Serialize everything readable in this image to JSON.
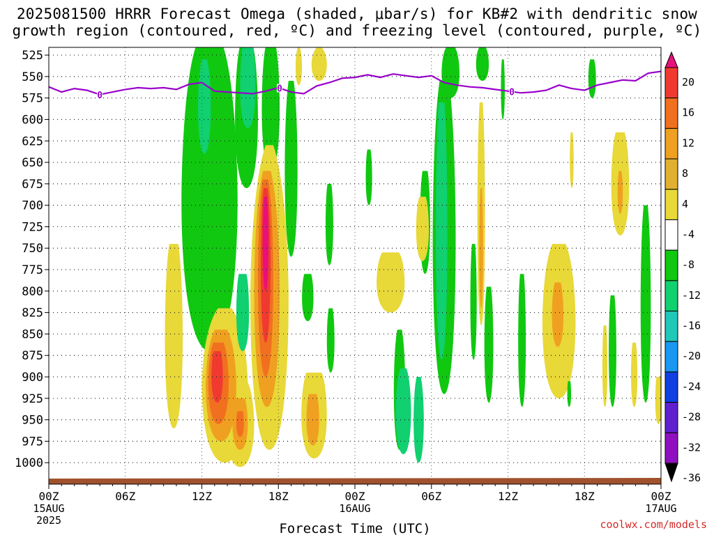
{
  "header": {
    "title_line1": "2025081500 HRRR Forecast Omega (shaded, μbar/s) for KB#2 with dendritic snow",
    "title_line2": "growth region (contoured, red, ºC) and freezing level (contoured, purple, ºC)"
  },
  "footer": {
    "credit": "coolwx.com/models"
  },
  "chart_data": {
    "type": "heatmap",
    "title": "2025081500 HRRR Forecast Omega (shaded, μbar/s) for KB#2 with dendritic snow growth region (contoured, red, ºC) and freezing level (contoured, purple, ºC)",
    "xlabel": "Forecast Time (UTC)",
    "ylabel": "",
    "x_hours_range": [
      0,
      48
    ],
    "x_ticks": [
      {
        "hour": 0,
        "label": "00Z",
        "sub1": "15AUG",
        "sub2": "2025"
      },
      {
        "hour": 6,
        "label": "06Z"
      },
      {
        "hour": 12,
        "label": "12Z"
      },
      {
        "hour": 18,
        "label": "18Z"
      },
      {
        "hour": 24,
        "label": "00Z",
        "sub1": "16AUG"
      },
      {
        "hour": 30,
        "label": "06Z"
      },
      {
        "hour": 36,
        "label": "12Z"
      },
      {
        "hour": 42,
        "label": "18Z"
      },
      {
        "hour": 48,
        "label": "00Z",
        "sub1": "17AUG"
      }
    ],
    "y_levels_hpa": [
      525,
      550,
      575,
      600,
      625,
      650,
      675,
      700,
      725,
      750,
      775,
      800,
      825,
      850,
      875,
      900,
      925,
      950,
      975,
      1000
    ],
    "y_axis_top": 516,
    "y_axis_bottom": 1025,
    "colorbar": {
      "labels": [
        "20",
        "16",
        "12",
        "8",
        "4",
        "-4",
        "-8",
        "-12",
        "-16",
        "-20",
        "-24",
        "-28",
        "-32",
        "-36"
      ],
      "colors": [
        "#e8107a",
        "#f03a30",
        "#f07020",
        "#f0a020",
        "#e0b030",
        "#e8d838",
        "#ffffff",
        "#10c810",
        "#10d070",
        "#20c8b8",
        "#1898f0",
        "#1040e0",
        "#6020d0",
        "#9010c0",
        "#a8a8a8"
      ]
    },
    "freezing_level": {
      "label": "0",
      "color": "#9900cc",
      "points": [
        [
          0,
          562
        ],
        [
          1,
          568
        ],
        [
          2,
          564
        ],
        [
          3,
          566
        ],
        [
          4,
          571
        ],
        [
          5,
          568
        ],
        [
          6,
          565
        ],
        [
          7,
          563
        ],
        [
          8,
          564
        ],
        [
          9,
          563
        ],
        [
          10,
          565
        ],
        [
          11,
          559
        ],
        [
          12,
          557
        ],
        [
          13,
          567
        ],
        [
          14,
          568
        ],
        [
          15,
          569
        ],
        [
          16,
          570
        ],
        [
          17,
          567
        ],
        [
          18,
          563
        ],
        [
          19,
          568
        ],
        [
          20,
          570
        ],
        [
          21,
          561
        ],
        [
          22,
          557
        ],
        [
          23,
          552
        ],
        [
          24,
          551
        ],
        [
          25,
          548
        ],
        [
          26,
          551
        ],
        [
          27,
          547
        ],
        [
          28,
          549
        ],
        [
          29,
          551
        ],
        [
          30,
          549
        ],
        [
          31,
          557
        ],
        [
          32,
          560
        ],
        [
          33,
          562
        ],
        [
          34,
          563
        ],
        [
          35,
          565
        ],
        [
          36,
          567
        ],
        [
          37,
          569
        ],
        [
          38,
          568
        ],
        [
          39,
          566
        ],
        [
          40,
          560
        ],
        [
          41,
          564
        ],
        [
          42,
          566
        ],
        [
          43,
          560
        ],
        [
          44,
          557
        ],
        [
          45,
          554
        ],
        [
          46,
          555
        ],
        [
          47,
          546
        ],
        [
          48,
          544
        ]
      ]
    },
    "omega_features": [
      {
        "value": -6,
        "hour": 12.6,
        "hw": 2.2,
        "top": 516,
        "bot": 870,
        "tw": 0.5
      },
      {
        "value": -10,
        "hour": 12.2,
        "hw": 0.5,
        "top": 530,
        "bot": 640,
        "tw": 0.4
      },
      {
        "value": -6,
        "hour": 15.5,
        "hw": 0.9,
        "top": 516,
        "bot": 680,
        "tw": 0.6
      },
      {
        "value": -10,
        "hour": 15.6,
        "hw": 0.6,
        "top": 516,
        "bot": 610,
        "tw": 0.7
      },
      {
        "value": -10,
        "hour": 15.2,
        "hw": 0.5,
        "top": 780,
        "bot": 870,
        "tw": 0.6
      },
      {
        "value": -6,
        "hour": 17.4,
        "hw": 0.7,
        "top": 516,
        "bot": 660,
        "tw": 0.6
      },
      {
        "value": -6,
        "hour": 19.0,
        "hw": 0.5,
        "top": 555,
        "bot": 760,
        "tw": 0.4
      },
      {
        "value": 6,
        "hour": 19.6,
        "hw": 0.25,
        "top": 516,
        "bot": 560,
        "tw": 0.3
      },
      {
        "value": 6,
        "hour": 21.2,
        "hw": 0.6,
        "top": 516,
        "bot": 555,
        "tw": 0.3
      },
      {
        "value": 6,
        "hour": 17.3,
        "hw": 1.5,
        "top": 630,
        "bot": 985,
        "tw": 0.2
      },
      {
        "value": 10,
        "hour": 17.1,
        "hw": 1.0,
        "top": 660,
        "bot": 935,
        "tw": 0.3
      },
      {
        "value": 14,
        "hour": 17.0,
        "hw": 0.6,
        "top": 670,
        "bot": 900,
        "tw": 0.35
      },
      {
        "value": 18,
        "hour": 17.0,
        "hw": 0.38,
        "top": 680,
        "bot": 860,
        "tw": 0.4
      },
      {
        "value": 22,
        "hour": 17.0,
        "hw": 0.22,
        "top": 690,
        "bot": 800,
        "tw": 0.5
      },
      {
        "value": 6,
        "hour": 9.8,
        "hw": 0.7,
        "top": 745,
        "bot": 960,
        "tw": 0.5
      },
      {
        "value": 6,
        "hour": 13.8,
        "hw": 1.8,
        "top": 820,
        "bot": 1000,
        "tw": 0.3
      },
      {
        "value": 10,
        "hour": 13.5,
        "hw": 1.2,
        "top": 845,
        "bot": 975,
        "tw": 0.4
      },
      {
        "value": 14,
        "hour": 13.3,
        "hw": 0.8,
        "top": 860,
        "bot": 955,
        "tw": 0.5
      },
      {
        "value": 18,
        "hour": 13.2,
        "hw": 0.45,
        "top": 870,
        "bot": 930,
        "tw": 0.6
      },
      {
        "value": 6,
        "hour": 15.0,
        "hw": 1.1,
        "top": 905,
        "bot": 1005,
        "tw": 0.5
      },
      {
        "value": 10,
        "hour": 15.0,
        "hw": 0.6,
        "top": 925,
        "bot": 985,
        "tw": 0.6
      },
      {
        "value": 14,
        "hour": 15.0,
        "hw": 0.3,
        "top": 940,
        "bot": 970,
        "tw": 0.7
      },
      {
        "value": 6,
        "hour": 20.8,
        "hw": 1.0,
        "top": 895,
        "bot": 995,
        "tw": 0.6
      },
      {
        "value": 10,
        "hour": 20.7,
        "hw": 0.5,
        "top": 920,
        "bot": 980,
        "tw": 0.6
      },
      {
        "value": -6,
        "hour": 20.3,
        "hw": 0.45,
        "top": 780,
        "bot": 835,
        "tw": 0.6
      },
      {
        "value": -6,
        "hour": 22.0,
        "hw": 0.3,
        "top": 675,
        "bot": 770,
        "tw": 0.5
      },
      {
        "value": -6,
        "hour": 22.1,
        "hw": 0.3,
        "top": 820,
        "bot": 895,
        "tw": 0.5
      },
      {
        "value": -6,
        "hour": 27.5,
        "hw": 0.45,
        "top": 845,
        "bot": 985,
        "tw": 0.4
      },
      {
        "value": -10,
        "hour": 27.8,
        "hw": 0.6,
        "top": 890,
        "bot": 990,
        "tw": 0.4
      },
      {
        "value": -6,
        "hour": 25.1,
        "hw": 0.25,
        "top": 635,
        "bot": 700,
        "tw": 0.5
      },
      {
        "value": 6,
        "hour": 26.8,
        "hw": 1.1,
        "top": 755,
        "bot": 825,
        "tw": 0.6
      },
      {
        "value": -6,
        "hour": 29.5,
        "hw": 0.4,
        "top": 660,
        "bot": 780,
        "tw": 0.5
      },
      {
        "value": 6,
        "hour": 29.3,
        "hw": 0.5,
        "top": 690,
        "bot": 765,
        "tw": 0.5
      },
      {
        "value": -10,
        "hour": 29.0,
        "hw": 0.4,
        "top": 900,
        "bot": 1000,
        "tw": 0.4
      },
      {
        "value": 6,
        "hour": 29.2,
        "hw": 0.2,
        "top": 920,
        "bot": 985,
        "tw": 0.5
      },
      {
        "value": -6,
        "hour": 31.0,
        "hw": 0.9,
        "top": 555,
        "bot": 920,
        "tw": 0.4
      },
      {
        "value": -10,
        "hour": 30.8,
        "hw": 0.45,
        "top": 580,
        "bot": 880,
        "tw": 0.5
      },
      {
        "value": -6,
        "hour": 31.5,
        "hw": 0.7,
        "top": 516,
        "bot": 575,
        "tw": 0.5
      },
      {
        "value": -6,
        "hour": 34.0,
        "hw": 0.5,
        "top": 516,
        "bot": 555,
        "tw": 0.5
      },
      {
        "value": -6,
        "hour": 33.3,
        "hw": 0.25,
        "top": 745,
        "bot": 880,
        "tw": 0.5
      },
      {
        "value": 6,
        "hour": 33.9,
        "hw": 0.3,
        "top": 580,
        "bot": 840,
        "tw": 0.4
      },
      {
        "value": 10,
        "hour": 33.9,
        "hw": 0.15,
        "top": 680,
        "bot": 820,
        "tw": 0.4
      },
      {
        "value": -6,
        "hour": 34.5,
        "hw": 0.35,
        "top": 795,
        "bot": 930,
        "tw": 0.5
      },
      {
        "value": -6,
        "hour": 35.6,
        "hw": 0.15,
        "top": 530,
        "bot": 600,
        "tw": 0.5
      },
      {
        "value": -6,
        "hour": 37.1,
        "hw": 0.3,
        "top": 780,
        "bot": 935,
        "tw": 0.5
      },
      {
        "value": 6,
        "hour": 40.0,
        "hw": 1.3,
        "top": 745,
        "bot": 925,
        "tw": 0.4
      },
      {
        "value": 10,
        "hour": 39.9,
        "hw": 0.45,
        "top": 790,
        "bot": 865,
        "tw": 0.5
      },
      {
        "value": -6,
        "hour": 40.8,
        "hw": 0.15,
        "top": 905,
        "bot": 935,
        "tw": 0.6
      },
      {
        "value": 6,
        "hour": 41.0,
        "hw": 0.15,
        "top": 615,
        "bot": 680,
        "tw": 0.5
      },
      {
        "value": 6,
        "hour": 44.8,
        "hw": 0.7,
        "top": 615,
        "bot": 735,
        "tw": 0.5
      },
      {
        "value": 10,
        "hour": 44.8,
        "hw": 0.2,
        "top": 660,
        "bot": 710,
        "tw": 0.5
      },
      {
        "value": -6,
        "hour": 42.6,
        "hw": 0.3,
        "top": 530,
        "bot": 575,
        "tw": 0.5
      },
      {
        "value": -6,
        "hour": 44.2,
        "hw": 0.3,
        "top": 805,
        "bot": 935,
        "tw": 0.5
      },
      {
        "value": 6,
        "hour": 43.6,
        "hw": 0.2,
        "top": 840,
        "bot": 935,
        "tw": 0.5
      },
      {
        "value": -6,
        "hour": 46.8,
        "hw": 0.4,
        "top": 700,
        "bot": 930,
        "tw": 0.4
      },
      {
        "value": 6,
        "hour": 45.9,
        "hw": 0.25,
        "top": 860,
        "bot": 935,
        "tw": 0.5
      },
      {
        "value": 6,
        "hour": 47.8,
        "hw": 0.25,
        "top": 900,
        "bot": 955,
        "tw": 0.6
      }
    ],
    "terrain_color": "#a0522d",
    "grid": true
  }
}
